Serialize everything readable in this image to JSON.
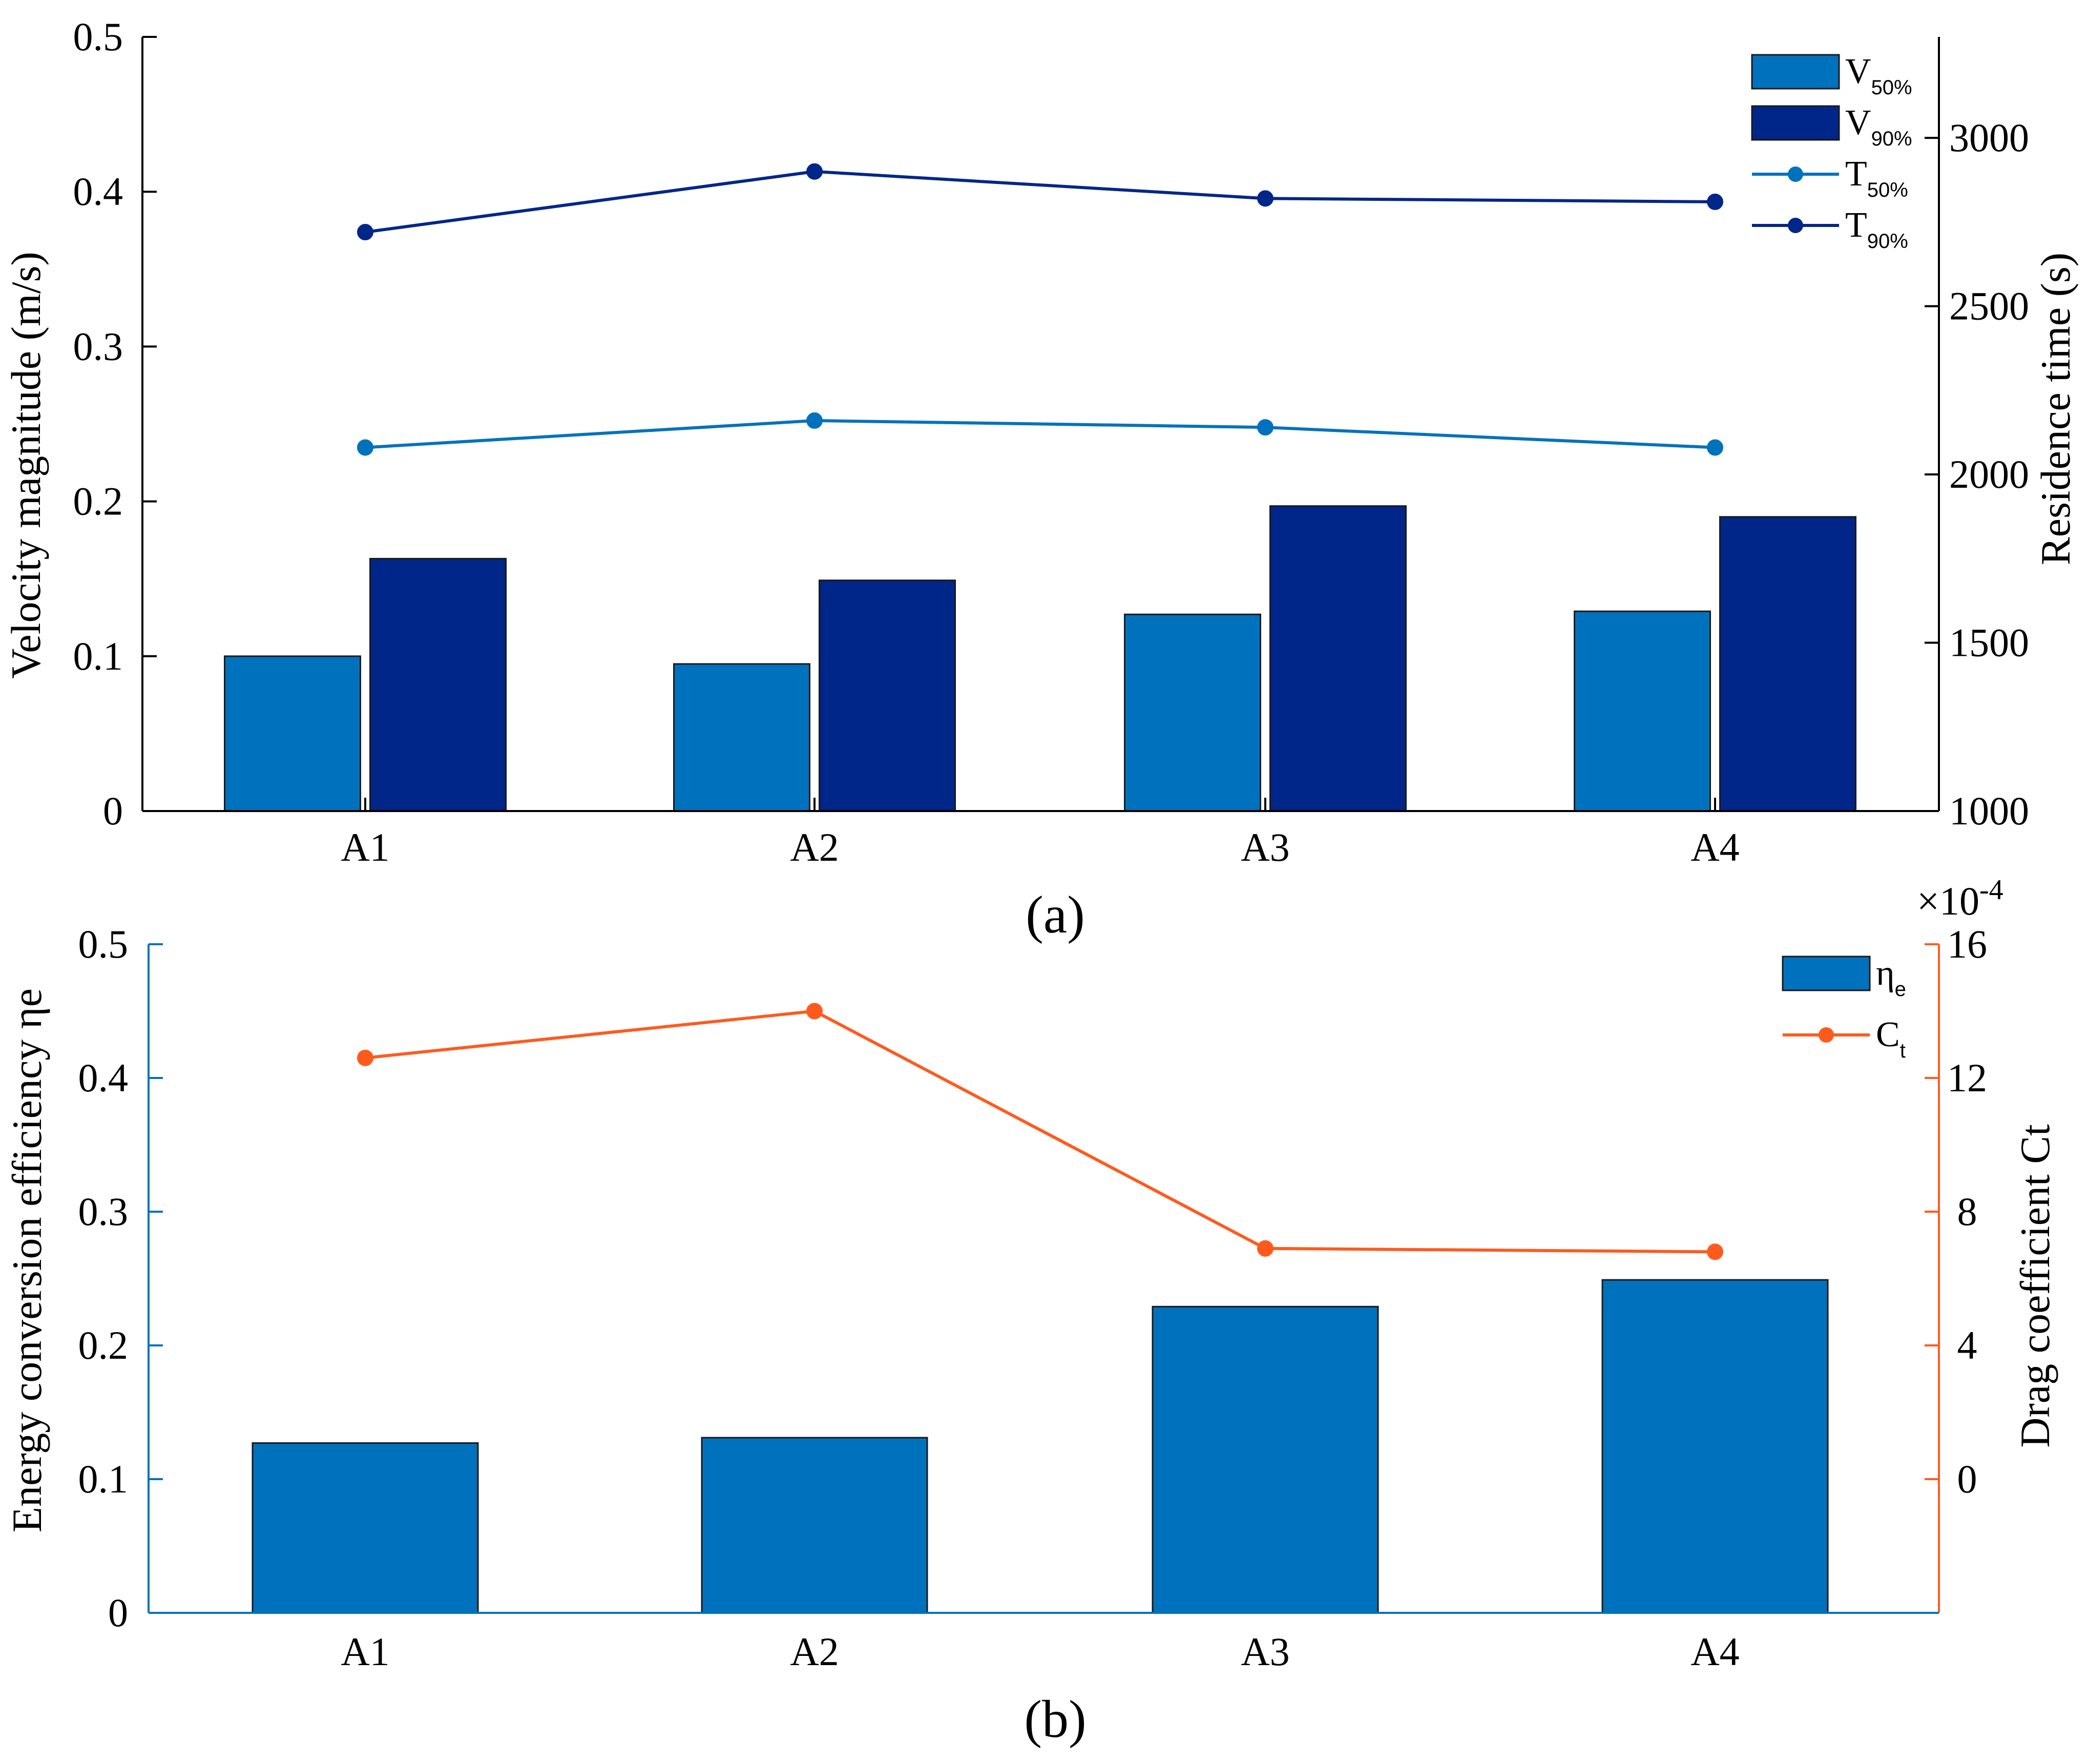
{
  "chart_data": [
    {
      "id": "a",
      "type": "bar+line",
      "caption": "(a)",
      "categories": [
        "A1",
        "A2",
        "A3",
        "A4"
      ],
      "left_axis": {
        "label": "Velocity magnitude (m/s)",
        "ylim": [
          0,
          0.5
        ],
        "ticks": [
          0,
          0.1,
          0.2,
          0.3,
          0.4,
          0.5
        ],
        "tick_labels": [
          "0",
          "0.1",
          "0.2",
          "0.3",
          "0.4",
          "0.5"
        ]
      },
      "right_axis": {
        "label": "Residence time (s)",
        "ylim": [
          1000,
          3300
        ],
        "ticks": [
          1000,
          1500,
          2000,
          2500,
          3000
        ],
        "tick_labels": [
          "1000",
          "1500",
          "2000",
          "2500",
          "3000"
        ]
      },
      "bars": [
        {
          "name": "V50%",
          "label_main": "V",
          "label_sub": "50%",
          "color": "#0072bd",
          "values": [
            0.1,
            0.095,
            0.127,
            0.129
          ]
        },
        {
          "name": "V90%",
          "label_main": "V",
          "label_sub": "90%",
          "color": "#00268a",
          "values": [
            0.163,
            0.149,
            0.197,
            0.19
          ]
        }
      ],
      "lines": [
        {
          "name": "T50%",
          "label_main": "T",
          "label_sub": "50%",
          "color": "#0072bd",
          "values": [
            2080,
            2160,
            2140,
            2080
          ]
        },
        {
          "name": "T90%",
          "label_main": "T",
          "label_sub": "90%",
          "color": "#00268a",
          "values": [
            2720,
            2900,
            2820,
            2810
          ]
        }
      ],
      "legend_position": "top-right"
    },
    {
      "id": "b",
      "type": "bar+line",
      "caption": "(b)",
      "categories": [
        "A1",
        "A2",
        "A3",
        "A4"
      ],
      "left_axis": {
        "label": "Energy conversion efficiency ηe",
        "ylim": [
          0,
          0.5
        ],
        "ticks": [
          0,
          0.1,
          0.2,
          0.3,
          0.4,
          0.5
        ],
        "tick_labels": [
          "0",
          "0.1",
          "0.2",
          "0.3",
          "0.4",
          "0.5"
        ],
        "color": "#0072bd"
      },
      "right_axis": {
        "label": "Drag coefficient  Ct",
        "ylim": [
          -4,
          16
        ],
        "ticks": [
          0,
          4,
          8,
          12,
          16
        ],
        "tick_labels": [
          "0",
          "4",
          "8",
          "12",
          "16"
        ],
        "exponent_label": "×10-4",
        "exponent_main": "×10",
        "exponent_sup": "-4",
        "color": "#ff5a1e"
      },
      "bars": [
        {
          "name": "ηe",
          "label_main": "η",
          "label_sub": "e",
          "color": "#0072bd",
          "values": [
            0.127,
            0.131,
            0.229,
            0.249
          ]
        }
      ],
      "lines": [
        {
          "name": "Ct",
          "label_main": "C",
          "label_sub": "t",
          "color": "#ff5a1e",
          "values": [
            12.6,
            14.0,
            6.9,
            6.8
          ]
        }
      ],
      "legend_position": "top-right"
    }
  ]
}
